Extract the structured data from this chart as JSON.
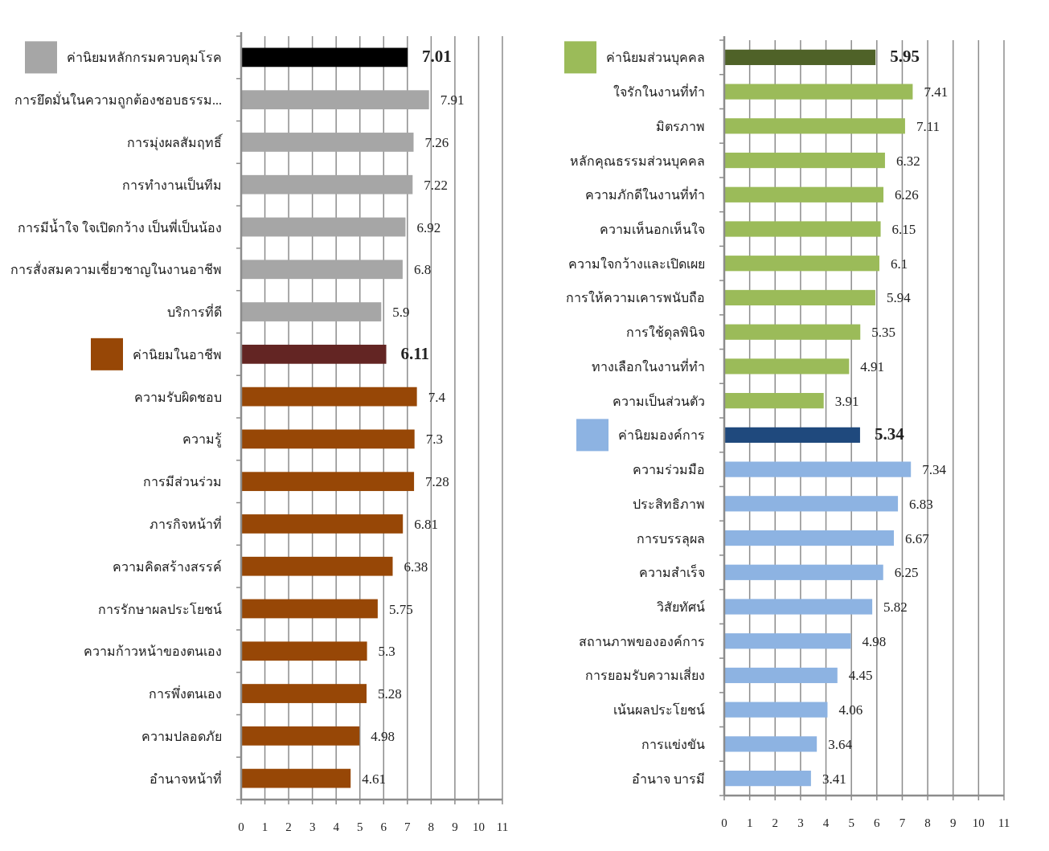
{
  "chart_data": [
    {
      "type": "bar",
      "orientation": "horizontal",
      "categories": [
        "ค่านิยมหลักกรมควบคุมโรค",
        "การยึดมั่นในความถูกต้องชอบธรรม...",
        "การมุ่งผลสัมฤทธิ์",
        "การทำงานเป็นทีม",
        "การมีน้ำใจ ใจเปิดกว้าง เป็นพี่เป็นน้อง",
        "การสั่งสมความเชี่ยวชาญในงานอาชีพ",
        "บริการที่ดี",
        "ค่านิยมในอาชีพ",
        "ความรับผิดชอบ",
        "ความรู้",
        "การมีส่วนร่วม",
        "ภารกิจหน้าที่",
        "ความคิดสร้างสรรค์",
        "การรักษาผลประโยชน์",
        "ความก้าวหน้าของตนเอง",
        "การพึ่งตนเอง",
        "ความปลอดภัย",
        "อำนาจหน้าที่"
      ],
      "values": [
        7.01,
        7.91,
        7.26,
        7.22,
        6.92,
        6.8,
        5.9,
        6.11,
        7.4,
        7.3,
        7.28,
        6.81,
        6.38,
        5.75,
        5.3,
        5.28,
        4.98,
        4.61
      ],
      "colors": [
        "#000000",
        "#a6a6a6",
        "#a6a6a6",
        "#a6a6a6",
        "#a6a6a6",
        "#a6a6a6",
        "#a6a6a6",
        "#632523",
        "#974706",
        "#974706",
        "#974706",
        "#974706",
        "#974706",
        "#974706",
        "#974706",
        "#974706",
        "#974706",
        "#974706"
      ],
      "xlim": [
        0,
        11
      ],
      "xticks": [
        0,
        1,
        2,
        3,
        4,
        5,
        6,
        7,
        8,
        9,
        10,
        11
      ],
      "grid": "x",
      "data_labels": true
    },
    {
      "type": "bar",
      "orientation": "horizontal",
      "categories": [
        "ค่านิยมส่วนบุคคล",
        "ใจรักในงานที่ทำ",
        "มิตรภาพ",
        "หลักคุณธรรมส่วนบุคคล",
        "ความภักดีในงานที่ทำ",
        "ความเห็นอกเห็นใจ",
        "ความใจกว้างและเปิดเผย",
        "การให้ความเคารพนับถือ",
        "การใช้ดุลพินิจ",
        "ทางเลือกในงานที่ทำ",
        "ความเป็นส่วนตัว",
        "ค่านิยมองค์การ",
        "ความร่วมมือ",
        "ประสิทธิภาพ",
        "การบรรลุผล",
        "ความสำเร็จ",
        "วิสัยทัศน์",
        "สถานภาพขององค์การ",
        "การยอมรับความเสี่ยง",
        "เน้นผลประโยชน์",
        "การแข่งขัน",
        "อำนาจ บารมี"
      ],
      "values": [
        5.95,
        7.41,
        7.11,
        6.32,
        6.26,
        6.15,
        6.1,
        5.94,
        5.35,
        4.91,
        3.91,
        5.34,
        7.34,
        6.83,
        6.67,
        6.25,
        5.82,
        4.98,
        4.45,
        4.06,
        3.64,
        3.41
      ],
      "colors": [
        "#4f6228",
        "#9bbb59",
        "#9bbb59",
        "#9bbb59",
        "#9bbb59",
        "#9bbb59",
        "#9bbb59",
        "#9bbb59",
        "#9bbb59",
        "#9bbb59",
        "#9bbb59",
        "#1f497d",
        "#8db3e2",
        "#8db3e2",
        "#8db3e2",
        "#8db3e2",
        "#8db3e2",
        "#8db3e2",
        "#8db3e2",
        "#8db3e2",
        "#8db3e2",
        "#8db3e2"
      ],
      "xlim": [
        0,
        11
      ],
      "xticks": [
        0,
        1,
        2,
        3,
        4,
        5,
        6,
        7,
        8,
        9,
        10,
        11
      ],
      "grid": "x",
      "data_labels": true
    }
  ]
}
